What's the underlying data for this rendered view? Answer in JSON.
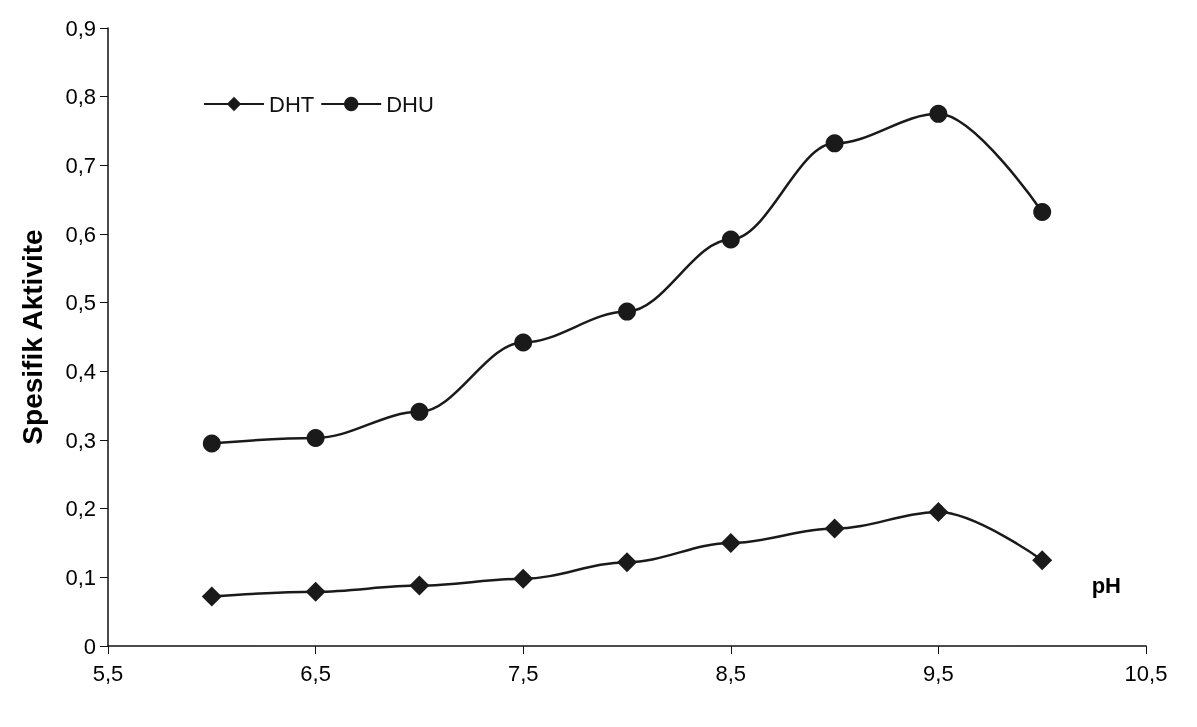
{
  "chart_data": {
    "type": "line",
    "xlabel": "pH",
    "ylabel": "Spesifik Aktivite",
    "xlim": [
      5.5,
      10.5
    ],
    "xticks": [
      {
        "value": 5.5,
        "label": "5,5"
      },
      {
        "value": 6.5,
        "label": "6,5"
      },
      {
        "value": 7.5,
        "label": "7,5"
      },
      {
        "value": 8.5,
        "label": "8,5"
      },
      {
        "value": 9.5,
        "label": "9,5"
      },
      {
        "value": 10.5,
        "label": "10,5"
      }
    ],
    "ylim": [
      0,
      0.9
    ],
    "yticks": [
      0,
      {
        "value": 0.1,
        "label": "0,1"
      },
      {
        "value": 0.2,
        "label": "0,2"
      },
      {
        "value": 0.3,
        "label": "0,3"
      },
      {
        "value": 0.4,
        "label": "0,4"
      },
      {
        "value": 0.5,
        "label": "0,5"
      },
      {
        "value": 0.6,
        "label": "0,6"
      },
      {
        "value": 0.7,
        "label": "0,7"
      },
      {
        "value": 0.8,
        "label": "0,8"
      },
      {
        "value": 0.9,
        "label": "0,9"
      }
    ],
    "x": [
      6,
      6.5,
      7,
      7.5,
      8,
      8.5,
      9,
      9.5,
      10
    ],
    "series": [
      {
        "name": "DHT",
        "color": "#1a1a1a",
        "marker": "diamond",
        "values": [
          0.072,
          0.079,
          0.088,
          0.098,
          0.122,
          0.15,
          0.171,
          0.195,
          0.125
        ]
      },
      {
        "name": "DHU",
        "color": "#1a1a1a",
        "marker": "circle",
        "values": [
          0.295,
          0.303,
          0.341,
          0.442,
          0.487,
          0.592,
          0.732,
          0.775,
          0.632
        ]
      }
    ],
    "legend": "top left",
    "grid": false,
    "line_style": "solid"
  }
}
